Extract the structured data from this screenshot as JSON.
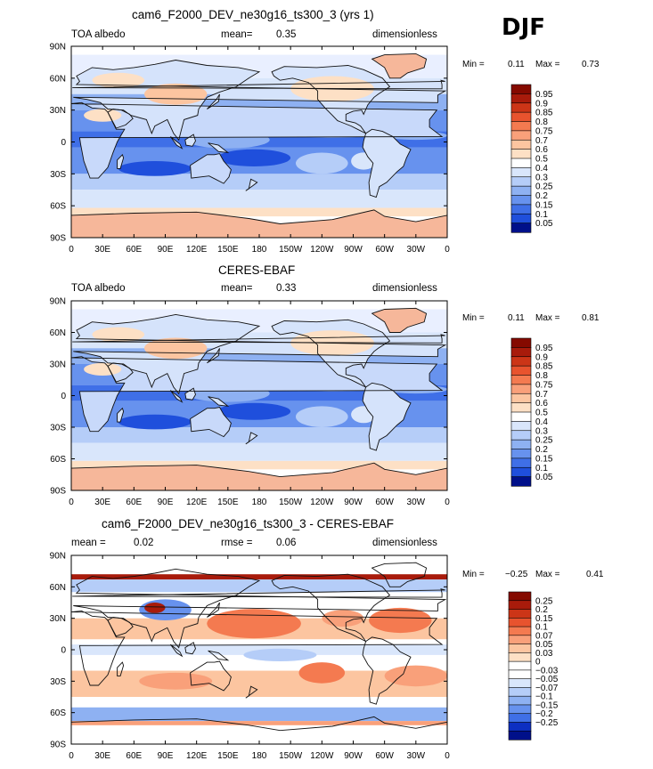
{
  "season": "DJF",
  "colors": {
    "pos": [
      "#fde0c5",
      "#fcc5a0",
      "#f9a07a",
      "#f47a50",
      "#e8532e",
      "#cc3517",
      "#a81b0b",
      "#850a00"
    ],
    "neutral": "#ffffff",
    "neg": [
      "#d9e6fb",
      "#b5cdf8",
      "#8eb1f2",
      "#6792ee",
      "#3f6fe7",
      "#1f4fdc",
      "#0d2fc2",
      "#00108a"
    ],
    "ocean": "#6f96ec",
    "land": "#d5e3fb",
    "ice": "#f6b79a",
    "contour": "#111111"
  },
  "chart_data": [
    {
      "type": "heatmap",
      "panel": "model",
      "title": "cam6_F2000_DEV_ne30g16_ts300_3 (yrs 1)",
      "left_label": "TOA albedo",
      "stat_label": "mean=",
      "stat_value": "0.35",
      "units": "dimensionless",
      "min_label": "Min =",
      "min_value": "0.11",
      "max_label": "Max =",
      "max_value": "0.73",
      "lat_ticks": [
        "90N",
        "60N",
        "30N",
        "0",
        "30S",
        "60S",
        "90S"
      ],
      "lon_ticks": [
        "0",
        "30E",
        "60E",
        "90E",
        "120E",
        "150E",
        "180",
        "150W",
        "120W",
        "90W",
        "60W",
        "30W",
        "0"
      ],
      "xlim": [
        0,
        360
      ],
      "ylim": [
        -90,
        90
      ],
      "levels": [
        "0.95",
        "0.9",
        "0.85",
        "0.8",
        "0.75",
        "0.7",
        "0.6",
        "0.5",
        "0.4",
        "0.3",
        "0.25",
        "0.2",
        "0.15",
        "0.1",
        "0.05"
      ]
    },
    {
      "type": "heatmap",
      "panel": "obs",
      "title": "CERES-EBAF",
      "left_label": "TOA albedo",
      "stat_label": "mean=",
      "stat_value": "0.33",
      "units": "dimensionless",
      "min_label": "Min =",
      "min_value": "0.11",
      "max_label": "Max =",
      "max_value": "0.81",
      "lat_ticks": [
        "90N",
        "60N",
        "30N",
        "0",
        "30S",
        "60S",
        "90S"
      ],
      "lon_ticks": [
        "0",
        "30E",
        "60E",
        "90E",
        "120E",
        "150E",
        "180",
        "150W",
        "120W",
        "90W",
        "60W",
        "30W",
        "0"
      ],
      "xlim": [
        0,
        360
      ],
      "ylim": [
        -90,
        90
      ],
      "levels": [
        "0.95",
        "0.9",
        "0.85",
        "0.8",
        "0.75",
        "0.7",
        "0.6",
        "0.5",
        "0.4",
        "0.3",
        "0.25",
        "0.2",
        "0.15",
        "0.1",
        "0.05"
      ]
    },
    {
      "type": "heatmap",
      "panel": "diff",
      "title": "cam6_F2000_DEV_ne30g16_ts300_3 - CERES-EBAF",
      "left_label": "mean =",
      "left_value": "0.02",
      "stat_label": "rmse =",
      "stat_value": "0.06",
      "units": "dimensionless",
      "min_label": "Min =",
      "min_value": "−0.25",
      "max_label": "Max =",
      "max_value": "0.41",
      "lat_ticks": [
        "90N",
        "60N",
        "30N",
        "0",
        "30S",
        "60S",
        "90S"
      ],
      "lon_ticks": [
        "0",
        "30E",
        "60E",
        "90E",
        "120E",
        "150E",
        "180",
        "150W",
        "120W",
        "90W",
        "60W",
        "30W",
        "0"
      ],
      "xlim": [
        0,
        360
      ],
      "ylim": [
        -90,
        90
      ],
      "levels": [
        "0.25",
        "0.2",
        "0.15",
        "0.1",
        "0.07",
        "0.05",
        "0.03",
        "0",
        "−0.03",
        "−0.05",
        "−0.07",
        "−0.1",
        "−0.15",
        "−0.2",
        "−0.25"
      ]
    }
  ]
}
